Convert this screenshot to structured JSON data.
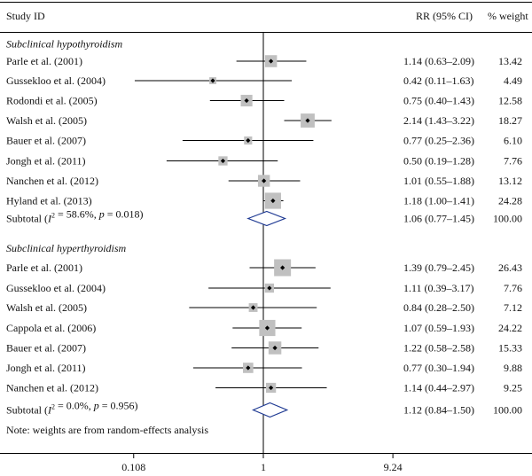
{
  "chart_data": {
    "type": "forest",
    "title": "",
    "header": {
      "study": "Study ID",
      "rr": "RR (95% CI)",
      "weight": "% weight"
    },
    "x_scale": "log",
    "xlim": [
      0.108,
      9.24
    ],
    "x_ticks": [
      {
        "value": 0.108,
        "label": "0.108"
      },
      {
        "value": 1,
        "label": "1"
      },
      {
        "value": 9.24,
        "label": "9.24"
      }
    ],
    "null_line": 1,
    "groups": [
      {
        "name": "Subclinical hypothyroidism",
        "studies": [
          {
            "label": "Parle et al. (2001)",
            "rr": 1.14,
            "lo": 0.63,
            "hi": 2.09,
            "ci_text": "1.14 (0.63–2.09)",
            "weight": 13.42,
            "weight_text": "13.42"
          },
          {
            "label": "Gussekloo et al. (2004)",
            "rr": 0.42,
            "lo": 0.11,
            "hi": 1.63,
            "ci_text": "0.42 (0.11–1.63)",
            "weight": 4.49,
            "weight_text": "4.49"
          },
          {
            "label": "Rodondi et al. (2005)",
            "rr": 0.75,
            "lo": 0.4,
            "hi": 1.43,
            "ci_text": "0.75 (0.40–1.43)",
            "weight": 12.58,
            "weight_text": "12.58"
          },
          {
            "label": "Walsh et al. (2005)",
            "rr": 2.14,
            "lo": 1.43,
            "hi": 3.22,
            "ci_text": "2.14 (1.43–3.22)",
            "weight": 18.27,
            "weight_text": "18.27"
          },
          {
            "label": "Bauer et al. (2007)",
            "rr": 0.77,
            "lo": 0.25,
            "hi": 2.36,
            "ci_text": "0.77 (0.25–2.36)",
            "weight": 6.1,
            "weight_text": "6.10"
          },
          {
            "label": "Jongh et al. (2011)",
            "rr": 0.5,
            "lo": 0.19,
            "hi": 1.28,
            "ci_text": "0.50 (0.19–1.28)",
            "weight": 7.76,
            "weight_text": "7.76"
          },
          {
            "label": "Nanchen et al. (2012)",
            "rr": 1.01,
            "lo": 0.55,
            "hi": 1.88,
            "ci_text": "1.01 (0.55–1.88)",
            "weight": 13.12,
            "weight_text": "13.12"
          },
          {
            "label": "Hyland et al. (2013)",
            "rr": 1.18,
            "lo": 1.0,
            "hi": 1.41,
            "ci_text": "1.18 (1.00–1.41)",
            "weight": 24.28,
            "weight_text": "24.28"
          }
        ],
        "subtotal": {
          "i2_text": "58.6%",
          "p_text": "0.018",
          "rr": 1.06,
          "lo": 0.77,
          "hi": 1.45,
          "ci_text": "1.06 (0.77–1.45)",
          "weight_text": "100.00"
        }
      },
      {
        "name": "Subclinical hyperthyroidism",
        "studies": [
          {
            "label": "Parle et al. (2001)",
            "rr": 1.39,
            "lo": 0.79,
            "hi": 2.45,
            "ci_text": "1.39 (0.79–2.45)",
            "weight": 26.43,
            "weight_text": "26.43"
          },
          {
            "label": "Gussekloo et al. (2004)",
            "rr": 1.11,
            "lo": 0.39,
            "hi": 3.17,
            "ci_text": "1.11 (0.39–3.17)",
            "weight": 7.76,
            "weight_text": "7.76"
          },
          {
            "label": "Walsh et al. (2005)",
            "rr": 0.84,
            "lo": 0.28,
            "hi": 2.5,
            "ci_text": "0.84 (0.28–2.50)",
            "weight": 7.12,
            "weight_text": "7.12"
          },
          {
            "label": "Cappola et al. (2006)",
            "rr": 1.07,
            "lo": 0.59,
            "hi": 1.93,
            "ci_text": "1.07 (0.59–1.93)",
            "weight": 24.22,
            "weight_text": "24.22"
          },
          {
            "label": "Bauer et al. (2007)",
            "rr": 1.22,
            "lo": 0.58,
            "hi": 2.58,
            "ci_text": "1.22 (0.58–2.58)",
            "weight": 15.33,
            "weight_text": "15.33"
          },
          {
            "label": "Jongh et al. (2011)",
            "rr": 0.77,
            "lo": 0.3,
            "hi": 1.94,
            "ci_text": "0.77 (0.30–1.94)",
            "weight": 9.88,
            "weight_text": "9.88"
          },
          {
            "label": "Nanchen et al. (2012)",
            "rr": 1.14,
            "lo": 0.44,
            "hi": 2.97,
            "ci_text": "1.14 (0.44–2.97)",
            "weight": 9.25,
            "weight_text": "9.25"
          }
        ],
        "subtotal": {
          "i2_text": "0.0%",
          "p_text": "0.956",
          "rr": 1.12,
          "lo": 0.84,
          "hi": 1.5,
          "ci_text": "1.12 (0.84–1.50)",
          "weight_text": "100.00"
        }
      }
    ],
    "note": "Note: weights are from random-effects analysis",
    "colors": {
      "box": "#c0c0c0",
      "diamond": "#1f3a93",
      "line": "#000000"
    }
  }
}
